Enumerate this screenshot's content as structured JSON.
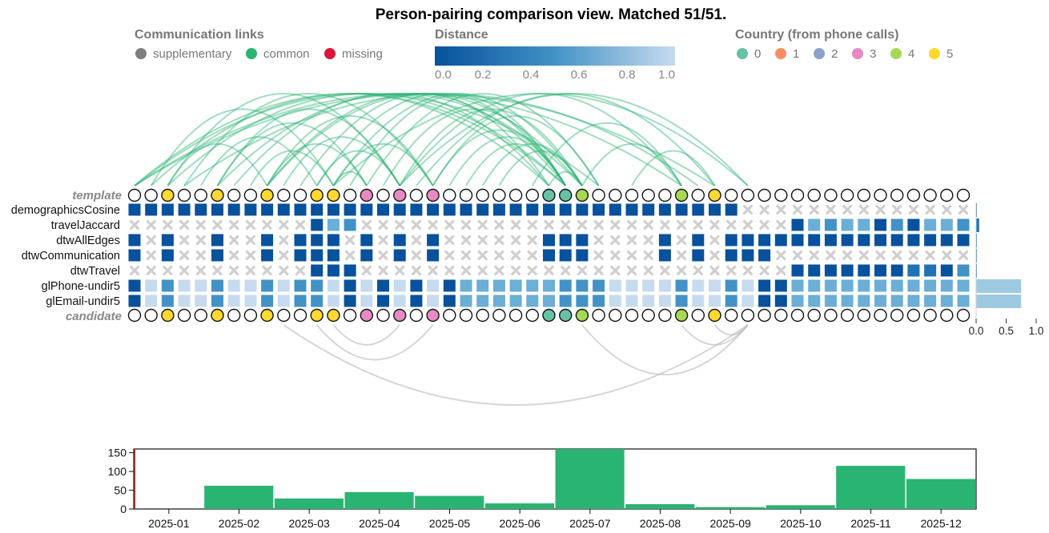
{
  "title": "Person-pairing comparison view. Matched 51/51.",
  "legends": {
    "links": {
      "heading": "Communication links",
      "items": [
        {
          "label": "supplementary",
          "color": "#7f7f7f"
        },
        {
          "label": "common",
          "color": "#2ab473"
        },
        {
          "label": "missing",
          "color": "#dc143c"
        }
      ]
    },
    "distance": {
      "heading": "Distance",
      "ticks": [
        "0.0",
        "0.2",
        "0.4",
        "0.6",
        "0.8",
        "1.0"
      ],
      "color_start": "#08519c",
      "color_end": "#c6dbef"
    },
    "country": {
      "heading": "Country (from phone calls)",
      "items": [
        {
          "label": "0",
          "color": "#66c2a5"
        },
        {
          "label": "1",
          "color": "#fc8d62"
        },
        {
          "label": "2",
          "color": "#8da0cb"
        },
        {
          "label": "3",
          "color": "#e78ac3"
        },
        {
          "label": "4",
          "color": "#a6d854"
        },
        {
          "label": "5",
          "color": "#ffd92f"
        }
      ]
    }
  },
  "matrix": {
    "template_label": "template",
    "candidate_label": "candidate",
    "rows": [
      {
        "label": "demographicsCosine",
        "cells": "0000000000000000000000000000000000000xxxxxxxxxxxxxx",
        "bar": 0.0
      },
      {
        "label": "travelJaccard",
        "cells": "xxxxxxxxxxx032xxxxxxxxxxxxxxxxxxxxxxxxxx03233020332",
        "bar": 0.05
      },
      {
        "label": "dtwAllEdges",
        "cells": "0x0xx0xx0x000x0x0x0xxxxxx000xxxx0x0x000000000000000",
        "bar": 0.0
      },
      {
        "label": "dtwCommunication",
        "cells": "0x0xx0xx0x000x0x0x0xxxxxx000xxxx0x0x000xxxxxxxxxxxx",
        "bar": 0.0
      },
      {
        "label": "dtwTravel",
        "cells": "xxxxxxxxxxx000xxxxxxxxxxxxxxxxxxxxxxxxxx00000001102",
        "bar": 0.0
      },
      {
        "label": "glPhone-undir5",
        "cells": "042442442422404040403333332224444244240033333333333",
        "bar": 0.75
      },
      {
        "label": "glEmail-undir5",
        "cells": "042442442422404040403333332224444244240033333333333",
        "bar": 0.75
      }
    ],
    "bar_ticks": [
      "0.0",
      "0.5",
      "1.0"
    ],
    "node_colors": [
      -1,
      -1,
      5,
      -1,
      -1,
      5,
      -1,
      -1,
      5,
      -1,
      -1,
      5,
      5,
      -1,
      3,
      -1,
      3,
      -1,
      3,
      -1,
      -1,
      -1,
      -1,
      -1,
      -1,
      0,
      0,
      4,
      -1,
      -1,
      -1,
      -1,
      -1,
      4,
      -1,
      5,
      -1,
      -1,
      -1,
      -1,
      -1,
      -1,
      -1,
      -1,
      -1,
      -1,
      -1,
      -1,
      -1,
      -1,
      -1
    ],
    "template_links": [
      [
        0,
        35
      ],
      [
        0,
        28
      ],
      [
        0,
        33
      ],
      [
        0,
        26
      ],
      [
        1,
        25
      ],
      [
        1,
        12
      ],
      [
        2,
        8
      ],
      [
        2,
        16
      ],
      [
        2,
        26
      ],
      [
        3,
        34
      ],
      [
        3,
        18
      ],
      [
        4,
        11
      ],
      [
        5,
        16
      ],
      [
        5,
        27
      ],
      [
        5,
        14
      ],
      [
        6,
        25
      ],
      [
        7,
        12
      ],
      [
        8,
        18
      ],
      [
        8,
        27
      ],
      [
        8,
        26
      ],
      [
        8,
        14
      ],
      [
        9,
        16
      ],
      [
        10,
        25
      ],
      [
        11,
        26
      ],
      [
        11,
        16
      ],
      [
        12,
        18
      ],
      [
        12,
        27
      ],
      [
        12,
        14
      ],
      [
        13,
        26
      ],
      [
        14,
        28
      ],
      [
        15,
        26
      ],
      [
        16,
        33
      ],
      [
        16,
        27
      ],
      [
        17,
        35
      ],
      [
        18,
        26
      ],
      [
        18,
        28
      ],
      [
        19,
        26
      ],
      [
        20,
        26
      ],
      [
        21,
        27
      ],
      [
        22,
        27
      ],
      [
        24,
        33
      ],
      [
        25,
        27
      ],
      [
        27,
        33
      ],
      [
        30,
        35
      ],
      [
        12,
        37
      ],
      [
        16,
        37
      ]
    ],
    "candidate_links": [
      [
        9,
        37
      ],
      [
        11,
        18
      ],
      [
        12,
        16
      ],
      [
        27,
        37
      ],
      [
        33,
        37
      ],
      [
        35,
        37
      ]
    ]
  },
  "histogram": {
    "yticks": [
      0,
      50,
      100,
      150
    ],
    "ymax": 160,
    "bins": [
      {
        "label": "2025-01",
        "value": 0
      },
      {
        "label": "2025-02",
        "value": 62
      },
      {
        "label": "2025-03",
        "value": 28
      },
      {
        "label": "2025-04",
        "value": 45
      },
      {
        "label": "2025-05",
        "value": 35
      },
      {
        "label": "2025-06",
        "value": 15
      },
      {
        "label": "2025-07",
        "value": 160
      },
      {
        "label": "2025-08",
        "value": 13
      },
      {
        "label": "2025-09",
        "value": 5
      },
      {
        "label": "2025-10",
        "value": 10
      },
      {
        "label": "2025-11",
        "value": 115
      },
      {
        "label": "2025-12",
        "value": 80
      }
    ]
  },
  "chart_data": {
    "type": "bar",
    "categories": [
      "2025-01",
      "2025-02",
      "2025-03",
      "2025-04",
      "2025-05",
      "2025-06",
      "2025-07",
      "2025-08",
      "2025-09",
      "2025-10",
      "2025-11",
      "2025-12"
    ],
    "values": [
      0,
      62,
      28,
      45,
      35,
      15,
      160,
      13,
      5,
      10,
      115,
      80
    ],
    "ylim": [
      0,
      160
    ],
    "grid": false
  }
}
